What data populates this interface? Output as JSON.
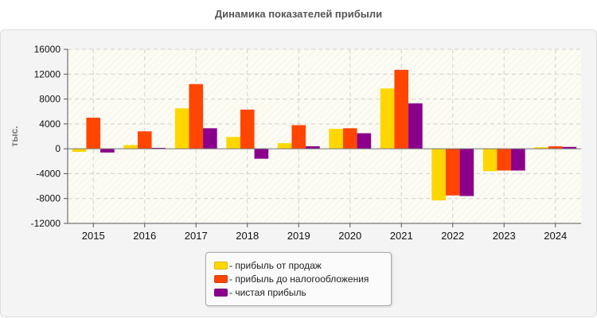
{
  "title": "Динамика показателей прибыли",
  "legend": {
    "items": [
      {
        "label": "- прибыль от продаж",
        "color": "#FFD700"
      },
      {
        "label": "- прибыль до налогообложения",
        "color": "#FF4500"
      },
      {
        "label": "- чистая прибыль",
        "color": "#8B008B"
      }
    ]
  },
  "chart_data": {
    "type": "bar",
    "title": "Динамика показателей прибыли",
    "xlabel": "",
    "ylabel": "тыс.",
    "ylim": [
      -12000,
      16000
    ],
    "yticks": [
      -12000,
      -8000,
      -4000,
      0,
      4000,
      8000,
      12000,
      16000
    ],
    "grid": true,
    "legend_position": "bottom",
    "categories": [
      "2015",
      "2016",
      "2017",
      "2018",
      "2019",
      "2020",
      "2021",
      "2022",
      "2023",
      "2024"
    ],
    "series": [
      {
        "name": "- прибыль от продаж",
        "color": "#FFD700",
        "values": [
          -500,
          600,
          6500,
          1900,
          900,
          3200,
          9700,
          -8300,
          -3600,
          250
        ]
      },
      {
        "name": "- прибыль до налогообложения",
        "color": "#FF4500",
        "values": [
          5000,
          2800,
          10400,
          6300,
          3800,
          3300,
          12700,
          -7500,
          -3500,
          400
        ]
      },
      {
        "name": "- чистая прибыль",
        "color": "#8B008B",
        "values": [
          -600,
          150,
          3300,
          -1600,
          400,
          2500,
          7300,
          -7600,
          -3500,
          300
        ]
      }
    ]
  }
}
